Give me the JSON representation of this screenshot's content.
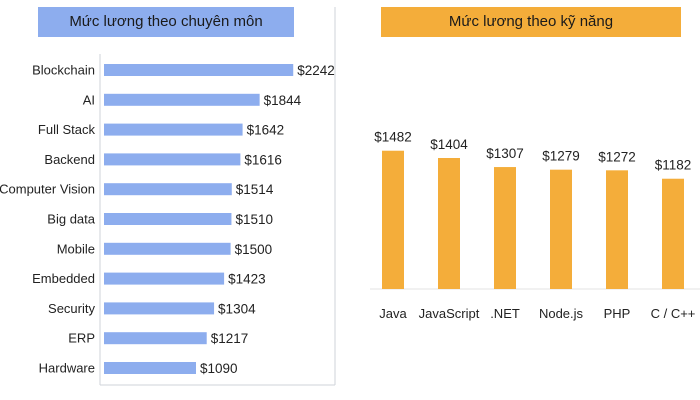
{
  "chart_data": [
    {
      "type": "bar",
      "orientation": "horizontal",
      "title": "Mức lương theo chuyên môn",
      "categories": [
        "Blockchain",
        "AI",
        "Full Stack",
        "Backend",
        "Computer Vision",
        "Big data",
        "Mobile",
        "Embedded",
        "Security",
        "ERP",
        "Hardware"
      ],
      "values": [
        2242,
        1844,
        1642,
        1616,
        1514,
        1510,
        1500,
        1423,
        1304,
        1217,
        1090
      ],
      "value_labels": [
        "$2242",
        "$1844",
        "$1642",
        "$1616",
        "$1514",
        "$1510",
        "$1500",
        "$1423",
        "$1304",
        "$1217",
        "$1090"
      ],
      "bar_color": "#8dadee",
      "title_bg": "#8dadee"
    },
    {
      "type": "bar",
      "orientation": "vertical",
      "title": "Mức lương theo kỹ năng",
      "categories": [
        "Java",
        "JavaScript",
        ".NET",
        "Node.js",
        "PHP",
        "C / C++"
      ],
      "values": [
        1482,
        1404,
        1307,
        1279,
        1272,
        1182
      ],
      "value_labels": [
        "$1482",
        "$1404",
        "$1307",
        "$1279",
        "$1272",
        "$1182"
      ],
      "bar_color": "#f4ad3a",
      "title_bg": "#f4ad3a"
    }
  ]
}
